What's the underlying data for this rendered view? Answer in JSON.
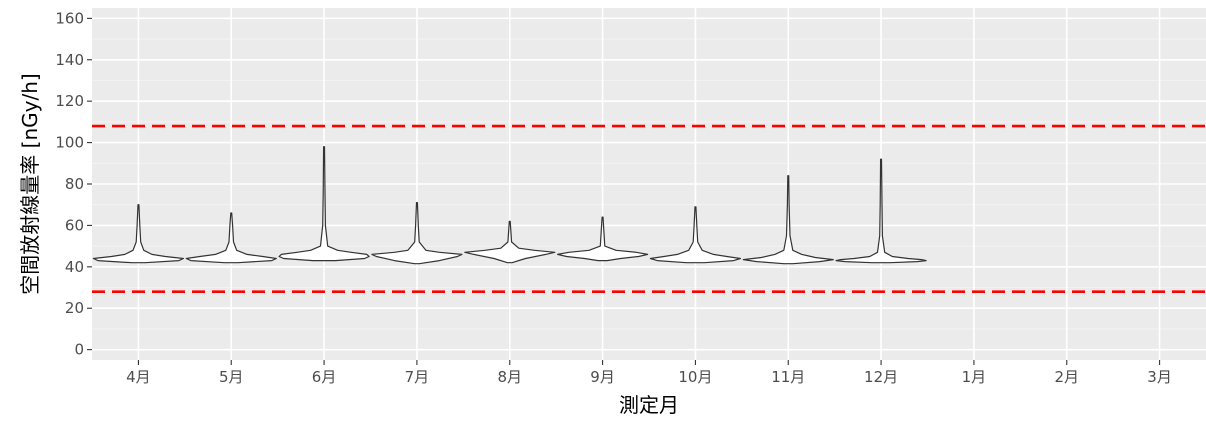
{
  "chart_data": {
    "type": "violin",
    "title": "",
    "xlabel": "測定月",
    "ylabel": "空間放射線量率 [nGy/h]",
    "categories": [
      "4月",
      "5月",
      "6月",
      "7月",
      "8月",
      "9月",
      "10月",
      "11月",
      "12月",
      "1月",
      "2月",
      "3月"
    ],
    "ylim": [
      -5,
      165
    ],
    "yticks": [
      0,
      20,
      40,
      60,
      80,
      100,
      120,
      140,
      160
    ],
    "grid": true,
    "reference_lines": [
      {
        "y": 108,
        "color": "#ff0000",
        "style": "dashed"
      },
      {
        "y": 28,
        "color": "#ff0000",
        "style": "dashed"
      }
    ],
    "violins": [
      {
        "category": "4月",
        "min": 42,
        "mode": 43.5,
        "max": 70,
        "density": [
          [
            42,
            0.15
          ],
          [
            43,
            0.9
          ],
          [
            44,
            1.0
          ],
          [
            45,
            0.6
          ],
          [
            46,
            0.3
          ],
          [
            48,
            0.12
          ],
          [
            52,
            0.05
          ],
          [
            60,
            0.03
          ],
          [
            70,
            0.01
          ]
        ]
      },
      {
        "category": "5月",
        "min": 42,
        "mode": 43.5,
        "max": 66,
        "density": [
          [
            42,
            0.15
          ],
          [
            43,
            0.9
          ],
          [
            44,
            1.0
          ],
          [
            45,
            0.7
          ],
          [
            46,
            0.35
          ],
          [
            48,
            0.12
          ],
          [
            52,
            0.05
          ],
          [
            60,
            0.03
          ],
          [
            66,
            0.01
          ]
        ]
      },
      {
        "category": "6月",
        "min": 43,
        "mode": 45,
        "max": 98,
        "density": [
          [
            43,
            0.25
          ],
          [
            44,
            0.9
          ],
          [
            45,
            1.0
          ],
          [
            46,
            0.95
          ],
          [
            47,
            0.6
          ],
          [
            48,
            0.3
          ],
          [
            50,
            0.08
          ],
          [
            60,
            0.03
          ],
          [
            75,
            0.02
          ],
          [
            98,
            0.01
          ]
        ]
      },
      {
        "category": "7月",
        "min": 41.5,
        "mode": 45.5,
        "max": 71,
        "density": [
          [
            41.5,
            0.05
          ],
          [
            43,
            0.5
          ],
          [
            45,
            0.9
          ],
          [
            46,
            1.0
          ],
          [
            47,
            0.5
          ],
          [
            48,
            0.2
          ],
          [
            52,
            0.05
          ],
          [
            60,
            0.03
          ],
          [
            71,
            0.01
          ]
        ]
      },
      {
        "category": "8月",
        "min": 42,
        "mode": 47,
        "max": 62,
        "density": [
          [
            42,
            0.05
          ],
          [
            44,
            0.35
          ],
          [
            46,
            0.8
          ],
          [
            47,
            1.0
          ],
          [
            48,
            0.55
          ],
          [
            49,
            0.2
          ],
          [
            52,
            0.04
          ],
          [
            62,
            0.01
          ]
        ]
      },
      {
        "category": "9月",
        "min": 43,
        "mode": 46,
        "max": 64,
        "density": [
          [
            43,
            0.1
          ],
          [
            44,
            0.4
          ],
          [
            45,
            0.8
          ],
          [
            46,
            1.0
          ],
          [
            47,
            0.75
          ],
          [
            48,
            0.3
          ],
          [
            50,
            0.05
          ],
          [
            64,
            0.01
          ]
        ]
      },
      {
        "category": "10月",
        "min": 42,
        "mode": 44,
        "max": 69,
        "density": [
          [
            42,
            0.2
          ],
          [
            43,
            0.85
          ],
          [
            44,
            1.0
          ],
          [
            45,
            0.7
          ],
          [
            46,
            0.4
          ],
          [
            48,
            0.15
          ],
          [
            52,
            0.05
          ],
          [
            60,
            0.03
          ],
          [
            69,
            0.01
          ]
        ]
      },
      {
        "category": "11月",
        "min": 41.5,
        "mode": 43.5,
        "max": 84,
        "density": [
          [
            41.5,
            0.1
          ],
          [
            42.5,
            0.7
          ],
          [
            43.5,
            1.0
          ],
          [
            44.5,
            0.6
          ],
          [
            46,
            0.3
          ],
          [
            48,
            0.1
          ],
          [
            55,
            0.04
          ],
          [
            70,
            0.02
          ],
          [
            84,
            0.01
          ]
        ]
      },
      {
        "category": "12月",
        "min": 42,
        "mode": 43,
        "max": 92,
        "density": [
          [
            42,
            0.2
          ],
          [
            42.5,
            0.8
          ],
          [
            43,
            1.0
          ],
          [
            43.5,
            0.9
          ],
          [
            44,
            0.6
          ],
          [
            45,
            0.25
          ],
          [
            47,
            0.08
          ],
          [
            55,
            0.03
          ],
          [
            70,
            0.02
          ],
          [
            92,
            0.01
          ]
        ]
      }
    ]
  }
}
